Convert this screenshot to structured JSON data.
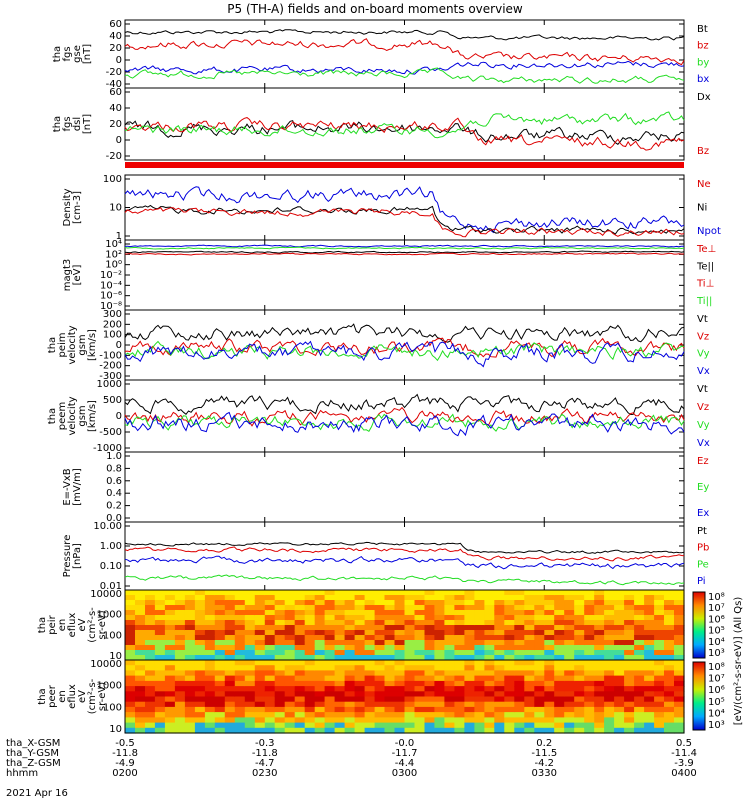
{
  "title": "P5 (TH-A) fields and on-board moments overview",
  "date_label": "2021 Apr 16",
  "colors": {
    "black": "#000000",
    "red": "#dd0000",
    "green": "#22dd22",
    "blue": "#0000dd"
  },
  "orbit_rows": [
    {
      "label": "tha_X-GSM",
      "values": [
        "-0.5",
        "-0.3",
        "-0.0",
        "0.2",
        "0.5"
      ]
    },
    {
      "label": "tha_Y-GSM",
      "values": [
        "-11.8",
        "-11.8",
        "-11.7",
        "-11.5",
        "-11.4"
      ]
    },
    {
      "label": "tha_Z-GSM",
      "values": [
        "-4.9",
        "-4.7",
        "-4.4",
        "-4.2",
        "-3.9"
      ]
    },
    {
      "label": "hhmm",
      "values": [
        "0200",
        "0230",
        "0300",
        "0330",
        "0400"
      ]
    }
  ],
  "chart_data": [
    {
      "id": "fgs",
      "type": "line",
      "ylabel": [
        "tha",
        "fgs",
        "gse",
        "[nT]"
      ],
      "yticks": [
        "60",
        "40",
        "20",
        "0",
        "-20",
        "-40"
      ],
      "ylim": [
        -40,
        60
      ],
      "legend": [
        {
          "name": "Bt",
          "color": "black"
        },
        {
          "name": "bz",
          "color": "red"
        },
        {
          "name": "by",
          "color": "green"
        },
        {
          "name": "bx",
          "color": "blue"
        }
      ]
    },
    {
      "id": "fgs_dsl",
      "type": "line",
      "ylabel": [
        "tha",
        "fgs",
        "dsl",
        "[nT]"
      ],
      "yticks": [
        "60",
        "40",
        "20",
        "0",
        "-20"
      ],
      "ylim": [
        -25,
        60
      ],
      "legend": [
        {
          "name": "Dx",
          "color": "black"
        },
        {
          "name": "Bz",
          "color": "red"
        }
      ]
    },
    {
      "id": "density",
      "type": "line",
      "ylabel": [
        "Density",
        "[cm-3]"
      ],
      "yticks": [
        "100",
        "10",
        "1"
      ],
      "ylim": [
        0.5,
        200
      ],
      "scale": "log",
      "legend": [
        {
          "name": "Ne",
          "color": "red"
        },
        {
          "name": "Ni",
          "color": "black"
        },
        {
          "name": "Npot",
          "color": "blue"
        }
      ]
    },
    {
      "id": "temp",
      "type": "line",
      "ylabel": [
        "magt3",
        "[eV]"
      ],
      "yticks": [
        "10⁴",
        "10²",
        "10⁰",
        "10⁻²",
        "10⁻⁴",
        "10⁻⁶",
        "10⁻⁸"
      ],
      "scale": "log",
      "legend": [
        {
          "name": "Te⊥",
          "color": "red"
        },
        {
          "name": "Te||",
          "color": "black"
        },
        {
          "name": "Ti⊥",
          "color": "red"
        },
        {
          "name": "Ti||",
          "color": "green"
        }
      ]
    },
    {
      "id": "peim",
      "type": "line",
      "ylabel": [
        "tha",
        "peim",
        "velocity",
        "gsm",
        "[km/s]"
      ],
      "yticks": [
        "300",
        "200",
        "100",
        "0",
        "-100",
        "-200",
        "-300"
      ],
      "ylim": [
        -300,
        300
      ],
      "legend": [
        {
          "name": "Vt",
          "color": "black"
        },
        {
          "name": "Vz",
          "color": "red"
        },
        {
          "name": "Vy",
          "color": "green"
        },
        {
          "name": "Vx",
          "color": "blue"
        }
      ]
    },
    {
      "id": "peem",
      "type": "line",
      "ylabel": [
        "tha",
        "peem",
        "velocity",
        "gsm",
        "[km/s]"
      ],
      "yticks": [
        "1000",
        "500",
        "0",
        "-500",
        "-1000"
      ],
      "ylim": [
        -1000,
        1000
      ],
      "legend": [
        {
          "name": "Vt",
          "color": "black"
        },
        {
          "name": "Vz",
          "color": "red"
        },
        {
          "name": "Vy",
          "color": "green"
        },
        {
          "name": "Vx",
          "color": "blue"
        }
      ]
    },
    {
      "id": "efield",
      "type": "line",
      "ylabel": [
        "E=-VxB",
        "[mV/m]"
      ],
      "yticks": [
        "1.0",
        "0.8",
        "0.6",
        "0.4",
        "0.2",
        "0.0"
      ],
      "ylim": [
        0,
        1
      ],
      "legend": [
        {
          "name": "Ez",
          "color": "red"
        },
        {
          "name": "Ey",
          "color": "green"
        },
        {
          "name": "Ex",
          "color": "blue"
        }
      ]
    },
    {
      "id": "pressure",
      "type": "line",
      "ylabel": [
        "Pressure",
        "[nPa]"
      ],
      "yticks": [
        "10.00",
        "1.00",
        "0.10",
        "0.01"
      ],
      "ylim": [
        0.01,
        10
      ],
      "scale": "log",
      "legend": [
        {
          "name": "Pt",
          "color": "black"
        },
        {
          "name": "Pb",
          "color": "red"
        },
        {
          "name": "Pe",
          "color": "green"
        },
        {
          "name": "Pi",
          "color": "blue"
        }
      ]
    },
    {
      "id": "peir",
      "type": "heatmap",
      "ylabel": [
        "tha",
        "peir",
        "en",
        "eflux",
        "eV",
        "(cm²-s-",
        "sr-eV)"
      ],
      "yticks": [
        "10000",
        "1000",
        "100",
        "10"
      ],
      "scale": "log"
    },
    {
      "id": "peer",
      "type": "heatmap",
      "ylabel": [
        "tha",
        "peer",
        "en",
        "eflux",
        "eV",
        "(cm²-s-",
        "sr-eV)"
      ],
      "yticks": [
        "10000",
        "1000",
        "100",
        "10"
      ],
      "scale": "log"
    }
  ],
  "colorbar": {
    "label": "[eV/(cm²-s-sr-eV)] (All Qs)",
    "upper_ticks": [
      "10⁸",
      "10⁷",
      "10⁶",
      "10⁵",
      "10⁴",
      "10³"
    ],
    "lower_ticks": [
      "10⁸",
      "10⁷",
      "10⁶",
      "10⁵",
      "10⁴",
      "10³"
    ]
  }
}
